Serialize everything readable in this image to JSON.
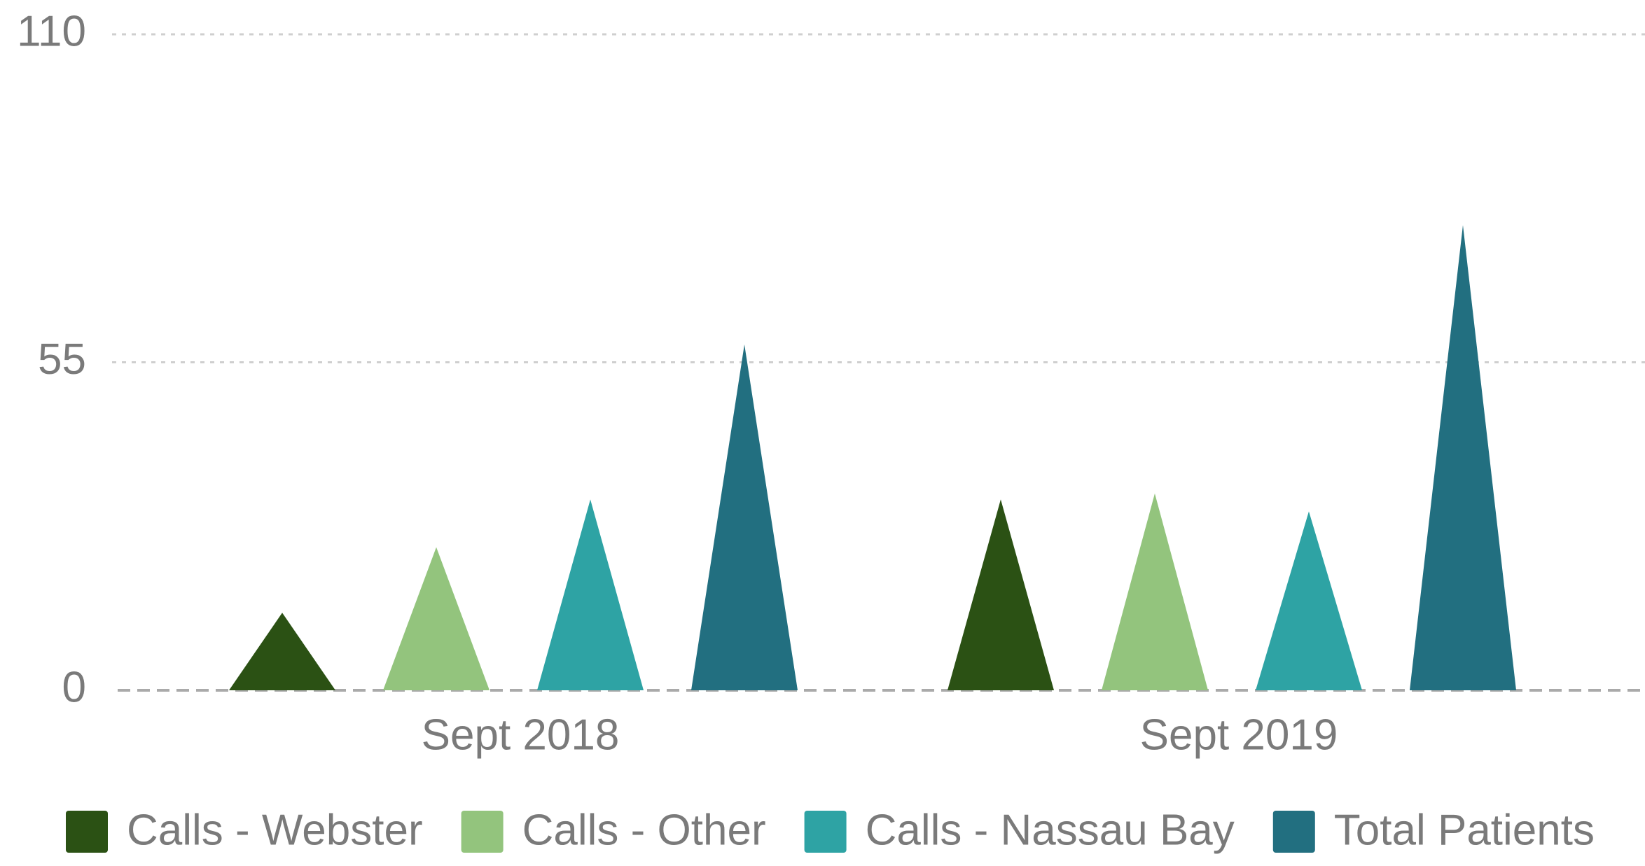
{
  "chart_data": {
    "type": "bar",
    "categories": [
      "Sept 2018",
      "Sept 2019"
    ],
    "series": [
      {
        "name": "Calls - Webster",
        "color": "#2b5114",
        "values": [
          13,
          32
        ]
      },
      {
        "name": "Calls - Other",
        "color": "#93c47d",
        "values": [
          24,
          33
        ]
      },
      {
        "name": "Calls - Nassau Bay",
        "color": "#2ea3a4",
        "values": [
          32,
          30
        ]
      },
      {
        "name": "Total Patients",
        "color": "#226f80",
        "values": [
          58,
          78
        ]
      }
    ],
    "ylim": [
      0,
      110
    ],
    "yticks": [
      0,
      55,
      110
    ],
    "grid": true,
    "legend": "bottom"
  }
}
